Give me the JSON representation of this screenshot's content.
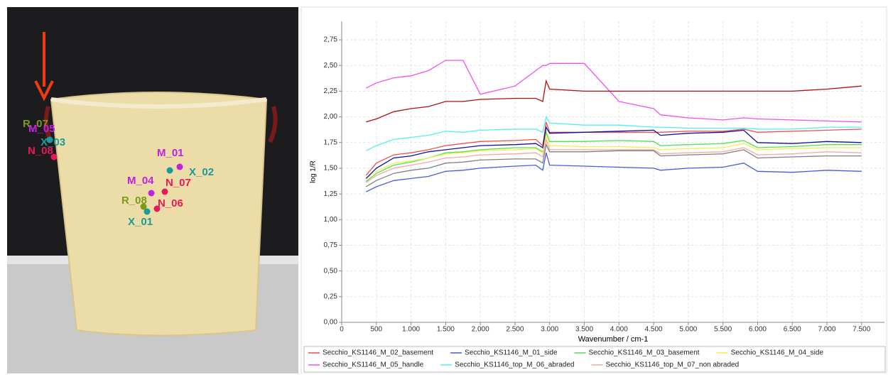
{
  "photo": {
    "labels": [
      {
        "text": "R_07",
        "color": "#7a9a1a"
      },
      {
        "text": "M_05",
        "color": "#c21fe0"
      },
      {
        "text": "X_03",
        "color": "#1a9a9a"
      },
      {
        "text": "N_08",
        "color": "#e8195a"
      },
      {
        "text": "M_01",
        "color": "#c21fe0"
      },
      {
        "text": "X_02",
        "color": "#1a9a9a"
      },
      {
        "text": "M_04",
        "color": "#c21fe0"
      },
      {
        "text": "N_07",
        "color": "#e8195a"
      },
      {
        "text": "R_08",
        "color": "#7a9a1a"
      },
      {
        "text": "N_06",
        "color": "#e8195a"
      },
      {
        "text": "X_01",
        "color": "#1a9a9a"
      }
    ]
  },
  "chart_data": {
    "type": "line",
    "x_label": "Wavenumber / cm-1",
    "y_label": "log 1/R",
    "grid": true,
    "xlim": [
      0,
      7830
    ],
    "ylim": [
      0,
      2.93
    ],
    "xticks": [
      0,
      500,
      {
        "value": 1000,
        "label": "1.000"
      },
      {
        "value": 1500,
        "label": "1.500"
      },
      {
        "value": 2000,
        "label": "2.000"
      },
      {
        "value": 2500,
        "label": "2.500"
      },
      {
        "value": 3000,
        "label": "3.000"
      },
      {
        "value": 3500,
        "label": "3.500"
      },
      {
        "value": 4000,
        "label": "4.000"
      },
      {
        "value": 4500,
        "label": "4.500"
      },
      {
        "value": 5000,
        "label": "5.000"
      },
      {
        "value": 5500,
        "label": "5.500"
      },
      {
        "value": 6000,
        "label": "6.000"
      },
      {
        "value": 6500,
        "label": "6.500"
      },
      {
        "value": 7000,
        "label": "7.000"
      },
      {
        "value": 7500,
        "label": "7.500"
      }
    ],
    "yticks": [
      {
        "value": 0,
        "label": "0,00"
      },
      {
        "value": 0.25,
        "label": "0,25"
      },
      {
        "value": 0.5,
        "label": "0,50"
      },
      {
        "value": 0.75,
        "label": "0,75"
      },
      {
        "value": 1,
        "label": "1,00"
      },
      {
        "value": 1.25,
        "label": "1,25"
      },
      {
        "value": 1.5,
        "label": "1,50"
      },
      {
        "value": 1.75,
        "label": "1,75"
      },
      {
        "value": 2,
        "label": "2,00"
      },
      {
        "value": 2.25,
        "label": "2,25"
      },
      {
        "value": 2.5,
        "label": "2,50"
      },
      {
        "value": 2.75,
        "label": "2,75"
      }
    ],
    "x": [
      350,
      500,
      750,
      1000,
      1250,
      1500,
      1750,
      2000,
      2500,
      2800,
      2900,
      2950,
      3000,
      3500,
      4000,
      4500,
      4600,
      5000,
      5500,
      5800,
      6000,
      6500,
      7000,
      7500
    ],
    "series": [
      {
        "name": "Secchio_KS1146_M_02_basement",
        "color": "#f05050",
        "values": [
          1.43,
          1.55,
          1.63,
          1.65,
          1.68,
          1.72,
          1.74,
          1.76,
          1.77,
          1.78,
          1.72,
          1.95,
          1.85,
          1.85,
          1.85,
          1.85,
          1.85,
          1.86,
          1.86,
          1.88,
          1.85,
          1.86,
          1.87,
          1.88
        ]
      },
      {
        "name": "Secchio_KS1146_M_01_side",
        "color": "#4a5ae0",
        "values": [
          1.27,
          1.32,
          1.38,
          1.4,
          1.42,
          1.47,
          1.48,
          1.5,
          1.52,
          1.53,
          1.48,
          1.65,
          1.53,
          1.52,
          1.51,
          1.5,
          1.48,
          1.5,
          1.51,
          1.55,
          1.47,
          1.46,
          1.48,
          1.47
        ]
      },
      {
        "name": "Secchio_KS1146_M_03_basement",
        "color": "#50e050",
        "values": [
          1.37,
          1.45,
          1.53,
          1.56,
          1.6,
          1.65,
          1.66,
          1.68,
          1.7,
          1.7,
          1.66,
          1.85,
          1.76,
          1.76,
          1.77,
          1.76,
          1.72,
          1.73,
          1.74,
          1.77,
          1.7,
          1.71,
          1.73,
          1.73
        ]
      },
      {
        "name": "Secchio_KS1146_M_04_side",
        "color": "#f0f050",
        "values": [
          1.4,
          1.47,
          1.55,
          1.57,
          1.6,
          1.64,
          1.65,
          1.67,
          1.68,
          1.69,
          1.65,
          1.82,
          1.72,
          1.71,
          1.71,
          1.7,
          1.68,
          1.69,
          1.7,
          1.74,
          1.68,
          1.69,
          1.7,
          1.7
        ]
      },
      {
        "name": "Secchio_KS1146_M_05_handle",
        "color": "#f050f0",
        "values": [
          2.28,
          2.33,
          2.38,
          2.4,
          2.45,
          2.55,
          2.55,
          2.22,
          2.3,
          2.45,
          2.5,
          2.5,
          2.52,
          2.52,
          2.15,
          2.08,
          2.02,
          1.99,
          1.97,
          1.99,
          1.98,
          1.97,
          1.96,
          1.95
        ]
      },
      {
        "name": "Secchio_KS1146_top_M_06_abraded",
        "color": "#50f0f0",
        "values": [
          1.67,
          1.72,
          1.78,
          1.8,
          1.82,
          1.86,
          1.85,
          1.87,
          1.88,
          1.88,
          1.85,
          2.0,
          1.94,
          1.92,
          1.92,
          1.9,
          1.9,
          1.89,
          1.89,
          1.89,
          1.88,
          1.88,
          1.9,
          1.9
        ]
      },
      {
        "name": "Secchio_KS1146_top_M_07_non abraded",
        "color": "#f5a8a8",
        "values": [
          1.36,
          1.43,
          1.5,
          1.53,
          1.56,
          1.6,
          1.61,
          1.63,
          1.64,
          1.65,
          1.61,
          1.78,
          1.68,
          1.68,
          1.68,
          1.68,
          1.64,
          1.65,
          1.66,
          1.7,
          1.63,
          1.64,
          1.66,
          1.65
        ]
      },
      {
        "color": "#b01010",
        "values": [
          1.95,
          1.98,
          2.05,
          2.08,
          2.1,
          2.15,
          2.15,
          2.17,
          2.18,
          2.18,
          2.15,
          2.35,
          2.27,
          2.25,
          2.25,
          2.25,
          2.25,
          2.25,
          2.25,
          2.25,
          2.25,
          2.25,
          2.27,
          2.3
        ]
      },
      {
        "color": "#1010a0",
        "values": [
          1.4,
          1.5,
          1.6,
          1.62,
          1.66,
          1.68,
          1.7,
          1.72,
          1.73,
          1.74,
          1.7,
          1.9,
          1.84,
          1.85,
          1.86,
          1.87,
          1.82,
          1.84,
          1.85,
          1.87,
          1.75,
          1.74,
          1.76,
          1.75
        ]
      },
      {
        "color": "#808080",
        "values": [
          1.32,
          1.38,
          1.45,
          1.48,
          1.5,
          1.55,
          1.56,
          1.58,
          1.59,
          1.59,
          1.55,
          1.73,
          1.66,
          1.66,
          1.67,
          1.67,
          1.62,
          1.63,
          1.64,
          1.68,
          1.6,
          1.61,
          1.62,
          1.62
        ]
      }
    ]
  }
}
